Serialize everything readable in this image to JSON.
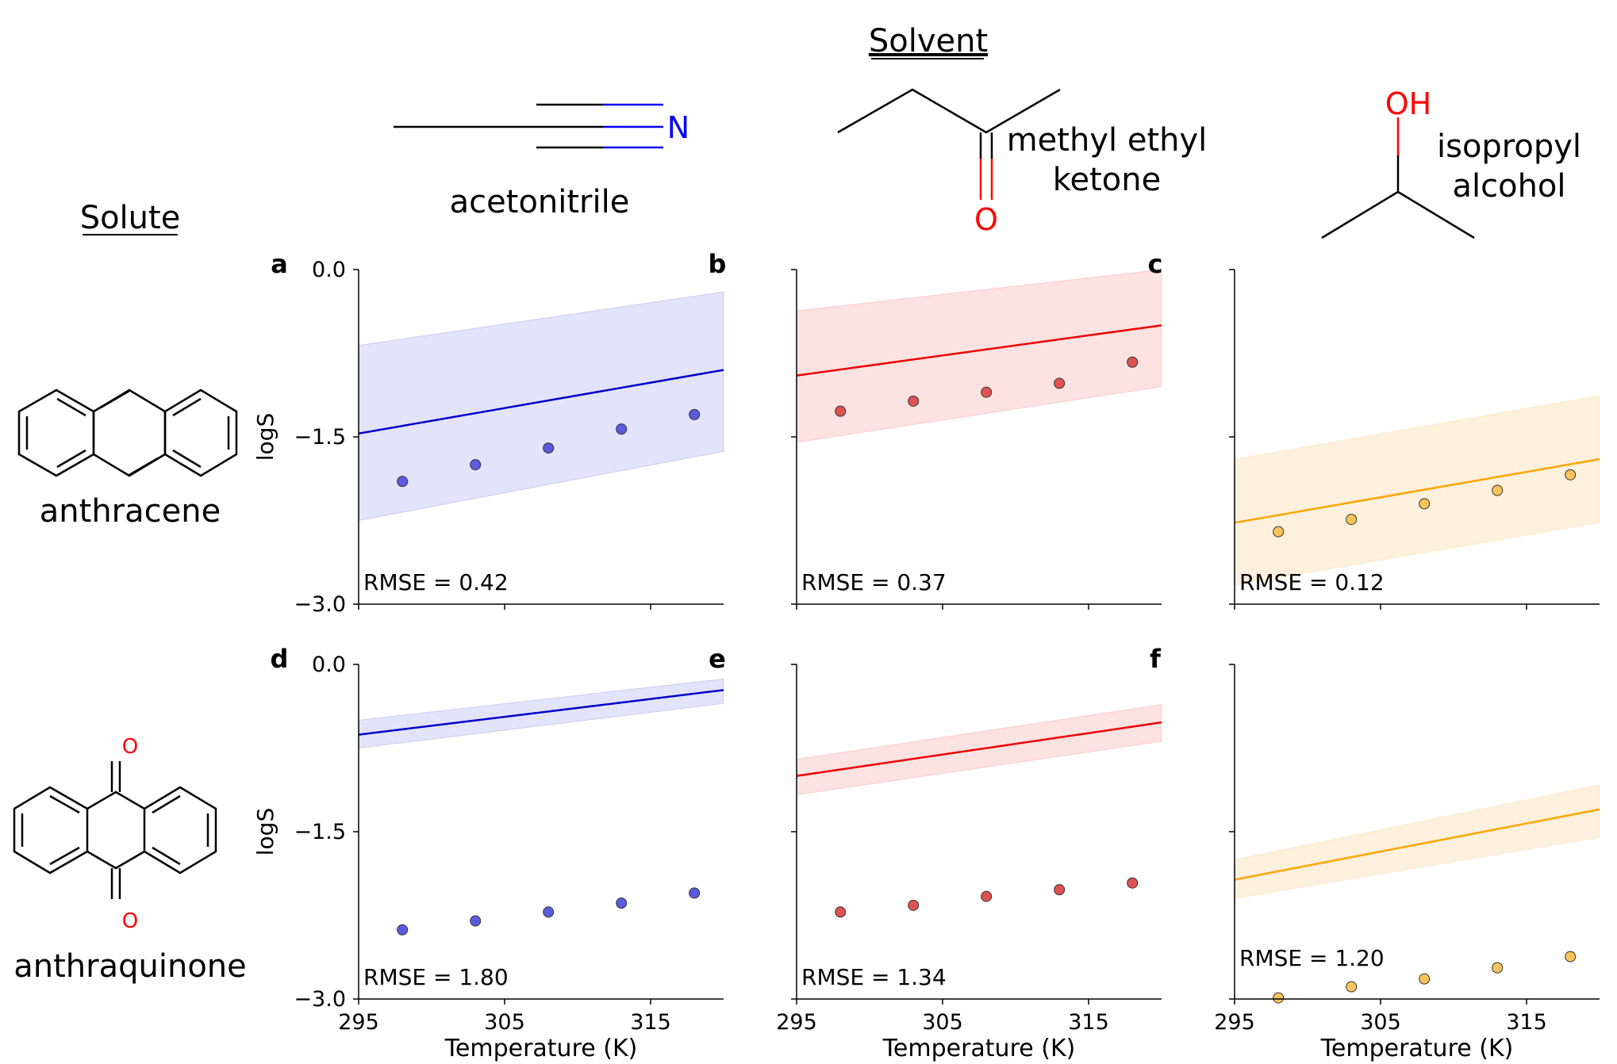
{
  "headers": {
    "solvent": "Solvent",
    "solute": "Solute"
  },
  "solvents": [
    {
      "name_lines": [
        "acetonitrile"
      ],
      "atom_label": "N",
      "atom_color": "#0000ff"
    },
    {
      "name_lines": [
        "methyl ethyl",
        "ketone"
      ],
      "atom_label": "O",
      "atom_color": "#ff0000"
    },
    {
      "name_lines": [
        "isopropyl",
        "alcohol"
      ],
      "atom_label": "OH",
      "atom_color": "#ff0000"
    }
  ],
  "solutes": [
    {
      "name": "anthracene"
    },
    {
      "name": "anthraquinone",
      "atom_labels": [
        "O",
        "O"
      ],
      "atom_color": "#ff0000"
    }
  ],
  "colors": {
    "acetonitrile": "#0000cc",
    "acetonitrile_fill": "#e3e3fb",
    "acetonitrile_marker": "#5b5bdf",
    "methyl_ethyl_ketone": "#ee0000",
    "methyl_ethyl_ketone_fill": "#fde2e2",
    "methyl_ethyl_ketone_marker": "#e05252",
    "isopropyl_alcohol": "#ffa500",
    "isopropyl_alcohol_fill": "#fdf0dd",
    "isopropyl_alcohol_marker": "#f9c45a"
  },
  "axis_text": {
    "ylabel": "logS",
    "xlabel": "Temperature (K)",
    "yticks": [
      "0.0",
      "−1.5",
      "−3.0"
    ],
    "xticks": [
      "295",
      "305",
      "315"
    ]
  },
  "chart_data": [
    {
      "type": "scatter",
      "panel_label": "a",
      "solute": "anthracene",
      "solvent": "acetonitrile",
      "xlim": [
        295,
        320
      ],
      "ylim": [
        -3.0,
        0.0
      ],
      "prediction_line": {
        "x": [
          295,
          320
        ],
        "y": [
          -1.47,
          -0.9
        ]
      },
      "uncertainty_band": {
        "x": [
          295,
          320
        ],
        "upper": [
          -0.68,
          -0.2
        ],
        "lower": [
          -2.25,
          -1.63
        ]
      },
      "points": {
        "x": [
          298,
          303,
          308,
          313,
          318
        ],
        "y": [
          -1.9,
          -1.75,
          -1.6,
          -1.43,
          -1.3
        ]
      },
      "annotation": "RMSE = 0.42"
    },
    {
      "type": "scatter",
      "panel_label": "b",
      "solute": "anthracene",
      "solvent": "methyl ethyl ketone",
      "xlim": [
        295,
        320
      ],
      "ylim": [
        -3.0,
        0.0
      ],
      "prediction_line": {
        "x": [
          295,
          320
        ],
        "y": [
          -0.95,
          -0.5
        ]
      },
      "uncertainty_band": {
        "x": [
          295,
          320
        ],
        "upper": [
          -0.37,
          0.0
        ],
        "lower": [
          -1.55,
          -1.05
        ]
      },
      "points": {
        "x": [
          298,
          303,
          308,
          313,
          318
        ],
        "y": [
          -1.27,
          -1.18,
          -1.1,
          -1.02,
          -0.83
        ]
      },
      "annotation": "RMSE = 0.37"
    },
    {
      "type": "scatter",
      "panel_label": "c",
      "solute": "anthracene",
      "solvent": "isopropyl alcohol",
      "xlim": [
        295,
        320
      ],
      "ylim": [
        -3.0,
        0.0
      ],
      "prediction_line": {
        "x": [
          295,
          320
        ],
        "y": [
          -2.27,
          -1.7
        ]
      },
      "uncertainty_band": {
        "x": [
          295,
          320
        ],
        "upper": [
          -1.7,
          -1.13
        ],
        "lower": [
          -2.83,
          -2.27
        ]
      },
      "points": {
        "x": [
          298,
          303,
          308,
          313,
          318
        ],
        "y": [
          -2.35,
          -2.24,
          -2.1,
          -1.98,
          -1.84
        ]
      },
      "annotation": "RMSE = 0.12"
    },
    {
      "type": "scatter",
      "panel_label": "d",
      "solute": "anthraquinone",
      "solvent": "acetonitrile",
      "xlim": [
        295,
        320
      ],
      "ylim": [
        -3.0,
        0.0
      ],
      "prediction_line": {
        "x": [
          295,
          320
        ],
        "y": [
          -0.63,
          -0.23
        ]
      },
      "uncertainty_band": {
        "x": [
          295,
          320
        ],
        "upper": [
          -0.5,
          -0.13
        ],
        "lower": [
          -0.75,
          -0.35
        ]
      },
      "points": {
        "x": [
          298,
          303,
          308,
          313,
          318
        ],
        "y": [
          -2.38,
          -2.3,
          -2.22,
          -2.14,
          -2.05
        ]
      },
      "annotation": "RMSE = 1.80"
    },
    {
      "type": "scatter",
      "panel_label": "e",
      "solute": "anthraquinone",
      "solvent": "methyl ethyl ketone",
      "xlim": [
        295,
        320
      ],
      "ylim": [
        -3.0,
        0.0
      ],
      "prediction_line": {
        "x": [
          295,
          320
        ],
        "y": [
          -1.0,
          -0.52
        ]
      },
      "uncertainty_band": {
        "x": [
          295,
          320
        ],
        "upper": [
          -0.85,
          -0.36
        ],
        "lower": [
          -1.17,
          -0.69
        ]
      },
      "points": {
        "x": [
          298,
          303,
          308,
          313,
          318
        ],
        "y": [
          -2.22,
          -2.16,
          -2.08,
          -2.02,
          -1.96
        ]
      },
      "annotation": "RMSE = 1.34"
    },
    {
      "type": "scatter",
      "panel_label": "f",
      "solute": "anthraquinone",
      "solvent": "isopropyl alcohol",
      "xlim": [
        295,
        320
      ],
      "ylim": [
        -3.0,
        0.0
      ],
      "prediction_line": {
        "x": [
          295,
          320
        ],
        "y": [
          -1.93,
          -1.3
        ]
      },
      "uncertainty_band": {
        "x": [
          295,
          320
        ],
        "upper": [
          -1.75,
          -1.08
        ],
        "lower": [
          -2.1,
          -1.55
        ]
      },
      "points": {
        "x": [
          298,
          303,
          308,
          313,
          318
        ],
        "y": [
          -2.99,
          -2.89,
          -2.82,
          -2.72,
          -2.62
        ]
      },
      "annotation": "RMSE = 1.20"
    }
  ]
}
